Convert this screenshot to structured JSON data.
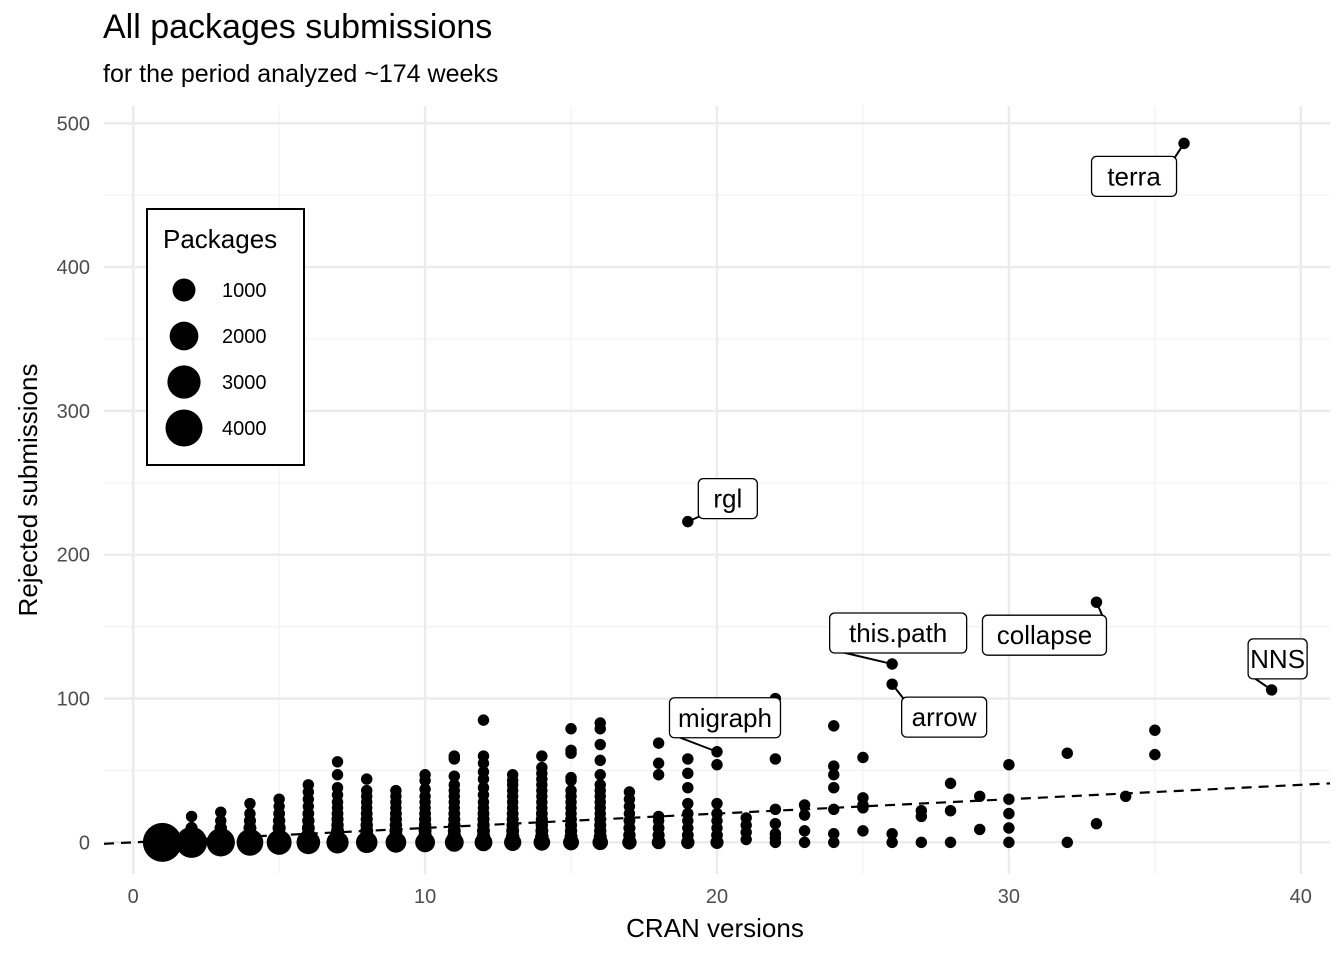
{
  "chart_data": {
    "type": "scatter",
    "title": "All packages submissions",
    "subtitle": "for the period analyzed ~174 weeks",
    "xlabel": "CRAN versions",
    "ylabel": "Rejected submissions",
    "xlim": [
      -1,
      41
    ],
    "ylim": [
      -22,
      512
    ],
    "xticks": [
      0,
      10,
      20,
      30,
      40
    ],
    "yticks": [
      0,
      100,
      200,
      300,
      400,
      500
    ],
    "grid": true,
    "trendline": {
      "style": "dashed",
      "x": [
        -1,
        41
      ],
      "y": [
        -1,
        41
      ]
    },
    "legend": {
      "title": "Packages",
      "placement": "top-left",
      "entries": [
        {
          "label": "1000",
          "value": 1000
        },
        {
          "label": "2000",
          "value": 2000
        },
        {
          "label": "3000",
          "value": 3000
        },
        {
          "label": "4000",
          "value": 4000
        }
      ]
    },
    "points": [
      {
        "x": 1,
        "y": 0,
        "size": 4600
      },
      {
        "x": 2,
        "y": 0,
        "size": 2500
      },
      {
        "x": 2,
        "y": 5,
        "size": 300
      },
      {
        "x": 2,
        "y": 10,
        "size": 50
      },
      {
        "x": 2,
        "y": 18,
        "size": 30
      },
      {
        "x": 3,
        "y": 0,
        "size": 1900
      },
      {
        "x": 3,
        "y": 5,
        "size": 200
      },
      {
        "x": 3,
        "y": 10,
        "size": 60
      },
      {
        "x": 3,
        "y": 15,
        "size": 30
      },
      {
        "x": 3,
        "y": 21,
        "size": 30
      },
      {
        "x": 4,
        "y": 0,
        "size": 1600
      },
      {
        "x": 4,
        "y": 5,
        "size": 150
      },
      {
        "x": 4,
        "y": 10,
        "size": 80
      },
      {
        "x": 4,
        "y": 15,
        "size": 50
      },
      {
        "x": 4,
        "y": 20,
        "size": 30
      },
      {
        "x": 4,
        "y": 27,
        "size": 30
      },
      {
        "x": 5,
        "y": 0,
        "size": 1300
      },
      {
        "x": 5,
        "y": 5,
        "size": 150
      },
      {
        "x": 5,
        "y": 10,
        "size": 90
      },
      {
        "x": 5,
        "y": 15,
        "size": 60
      },
      {
        "x": 5,
        "y": 20,
        "size": 40
      },
      {
        "x": 5,
        "y": 25,
        "size": 30
      },
      {
        "x": 5,
        "y": 30,
        "size": 30
      },
      {
        "x": 6,
        "y": 0,
        "size": 1100
      },
      {
        "x": 6,
        "y": 5,
        "size": 150
      },
      {
        "x": 6,
        "y": 10,
        "size": 80
      },
      {
        "x": 6,
        "y": 15,
        "size": 60
      },
      {
        "x": 6,
        "y": 20,
        "size": 40
      },
      {
        "x": 6,
        "y": 25,
        "size": 30
      },
      {
        "x": 6,
        "y": 30,
        "size": 30
      },
      {
        "x": 6,
        "y": 35,
        "size": 30
      },
      {
        "x": 6,
        "y": 40,
        "size": 30
      },
      {
        "x": 7,
        "y": 0,
        "size": 900
      },
      {
        "x": 7,
        "y": 4,
        "size": 150
      },
      {
        "x": 7,
        "y": 8,
        "size": 80
      },
      {
        "x": 7,
        "y": 12,
        "size": 60
      },
      {
        "x": 7,
        "y": 16,
        "size": 50
      },
      {
        "x": 7,
        "y": 20,
        "size": 40
      },
      {
        "x": 7,
        "y": 24,
        "size": 30
      },
      {
        "x": 7,
        "y": 28,
        "size": 30
      },
      {
        "x": 7,
        "y": 33,
        "size": 30
      },
      {
        "x": 7,
        "y": 38,
        "size": 30
      },
      {
        "x": 7,
        "y": 47,
        "size": 30
      },
      {
        "x": 7,
        "y": 56,
        "size": 30
      },
      {
        "x": 8,
        "y": 0,
        "size": 800
      },
      {
        "x": 8,
        "y": 4,
        "size": 150
      },
      {
        "x": 8,
        "y": 8,
        "size": 80
      },
      {
        "x": 8,
        "y": 12,
        "size": 60
      },
      {
        "x": 8,
        "y": 16,
        "size": 50
      },
      {
        "x": 8,
        "y": 20,
        "size": 40
      },
      {
        "x": 8,
        "y": 24,
        "size": 30
      },
      {
        "x": 8,
        "y": 28,
        "size": 30
      },
      {
        "x": 8,
        "y": 32,
        "size": 30
      },
      {
        "x": 8,
        "y": 36,
        "size": 30
      },
      {
        "x": 8,
        "y": 44,
        "size": 30
      },
      {
        "x": 9,
        "y": 0,
        "size": 700
      },
      {
        "x": 9,
        "y": 4,
        "size": 120
      },
      {
        "x": 9,
        "y": 8,
        "size": 80
      },
      {
        "x": 9,
        "y": 12,
        "size": 60
      },
      {
        "x": 9,
        "y": 16,
        "size": 50
      },
      {
        "x": 9,
        "y": 20,
        "size": 40
      },
      {
        "x": 9,
        "y": 24,
        "size": 30
      },
      {
        "x": 9,
        "y": 28,
        "size": 30
      },
      {
        "x": 9,
        "y": 32,
        "size": 30
      },
      {
        "x": 9,
        "y": 36,
        "size": 30
      },
      {
        "x": 10,
        "y": 0,
        "size": 600
      },
      {
        "x": 10,
        "y": 4,
        "size": 120
      },
      {
        "x": 10,
        "y": 8,
        "size": 80
      },
      {
        "x": 10,
        "y": 12,
        "size": 60
      },
      {
        "x": 10,
        "y": 16,
        "size": 50
      },
      {
        "x": 10,
        "y": 20,
        "size": 40
      },
      {
        "x": 10,
        "y": 24,
        "size": 30
      },
      {
        "x": 10,
        "y": 28,
        "size": 30
      },
      {
        "x": 10,
        "y": 32,
        "size": 30
      },
      {
        "x": 10,
        "y": 37,
        "size": 30
      },
      {
        "x": 10,
        "y": 43,
        "size": 30
      },
      {
        "x": 10,
        "y": 47,
        "size": 30
      },
      {
        "x": 11,
        "y": 0,
        "size": 500
      },
      {
        "x": 11,
        "y": 4,
        "size": 120
      },
      {
        "x": 11,
        "y": 8,
        "size": 80
      },
      {
        "x": 11,
        "y": 12,
        "size": 60
      },
      {
        "x": 11,
        "y": 16,
        "size": 50
      },
      {
        "x": 11,
        "y": 20,
        "size": 40
      },
      {
        "x": 11,
        "y": 24,
        "size": 30
      },
      {
        "x": 11,
        "y": 28,
        "size": 30
      },
      {
        "x": 11,
        "y": 32,
        "size": 30
      },
      {
        "x": 11,
        "y": 36,
        "size": 30
      },
      {
        "x": 11,
        "y": 40,
        "size": 30
      },
      {
        "x": 11,
        "y": 46,
        "size": 30
      },
      {
        "x": 11,
        "y": 58,
        "size": 30
      },
      {
        "x": 11,
        "y": 60,
        "size": 30
      },
      {
        "x": 12,
        "y": 0,
        "size": 400
      },
      {
        "x": 12,
        "y": 4,
        "size": 100
      },
      {
        "x": 12,
        "y": 8,
        "size": 80
      },
      {
        "x": 12,
        "y": 12,
        "size": 60
      },
      {
        "x": 12,
        "y": 16,
        "size": 50
      },
      {
        "x": 12,
        "y": 20,
        "size": 40
      },
      {
        "x": 12,
        "y": 24,
        "size": 30
      },
      {
        "x": 12,
        "y": 28,
        "size": 30
      },
      {
        "x": 12,
        "y": 33,
        "size": 30
      },
      {
        "x": 12,
        "y": 38,
        "size": 30
      },
      {
        "x": 12,
        "y": 44,
        "size": 30
      },
      {
        "x": 12,
        "y": 49,
        "size": 30
      },
      {
        "x": 12,
        "y": 55,
        "size": 30
      },
      {
        "x": 12,
        "y": 60,
        "size": 30
      },
      {
        "x": 12,
        "y": 85,
        "size": 30
      },
      {
        "x": 13,
        "y": 0,
        "size": 350
      },
      {
        "x": 13,
        "y": 4,
        "size": 100
      },
      {
        "x": 13,
        "y": 8,
        "size": 80
      },
      {
        "x": 13,
        "y": 12,
        "size": 60
      },
      {
        "x": 13,
        "y": 16,
        "size": 50
      },
      {
        "x": 13,
        "y": 20,
        "size": 40
      },
      {
        "x": 13,
        "y": 24,
        "size": 30
      },
      {
        "x": 13,
        "y": 28,
        "size": 30
      },
      {
        "x": 13,
        "y": 32,
        "size": 30
      },
      {
        "x": 13,
        "y": 36,
        "size": 30
      },
      {
        "x": 13,
        "y": 40,
        "size": 30
      },
      {
        "x": 13,
        "y": 43,
        "size": 30
      },
      {
        "x": 13,
        "y": 47,
        "size": 30
      },
      {
        "x": 14,
        "y": 0,
        "size": 300
      },
      {
        "x": 14,
        "y": 4,
        "size": 100
      },
      {
        "x": 14,
        "y": 8,
        "size": 80
      },
      {
        "x": 14,
        "y": 12,
        "size": 60
      },
      {
        "x": 14,
        "y": 16,
        "size": 50
      },
      {
        "x": 14,
        "y": 20,
        "size": 40
      },
      {
        "x": 14,
        "y": 24,
        "size": 30
      },
      {
        "x": 14,
        "y": 28,
        "size": 30
      },
      {
        "x": 14,
        "y": 32,
        "size": 30
      },
      {
        "x": 14,
        "y": 36,
        "size": 30
      },
      {
        "x": 14,
        "y": 40,
        "size": 30
      },
      {
        "x": 14,
        "y": 44,
        "size": 30
      },
      {
        "x": 14,
        "y": 48,
        "size": 30
      },
      {
        "x": 14,
        "y": 52,
        "size": 30
      },
      {
        "x": 14,
        "y": 60,
        "size": 30
      },
      {
        "x": 15,
        "y": 0,
        "size": 250
      },
      {
        "x": 15,
        "y": 4,
        "size": 80
      },
      {
        "x": 15,
        "y": 8,
        "size": 60
      },
      {
        "x": 15,
        "y": 12,
        "size": 50
      },
      {
        "x": 15,
        "y": 16,
        "size": 40
      },
      {
        "x": 15,
        "y": 20,
        "size": 30
      },
      {
        "x": 15,
        "y": 24,
        "size": 30
      },
      {
        "x": 15,
        "y": 28,
        "size": 30
      },
      {
        "x": 15,
        "y": 32,
        "size": 30
      },
      {
        "x": 15,
        "y": 36,
        "size": 30
      },
      {
        "x": 15,
        "y": 43,
        "size": 30
      },
      {
        "x": 15,
        "y": 45,
        "size": 30
      },
      {
        "x": 15,
        "y": 62,
        "size": 30
      },
      {
        "x": 15,
        "y": 64,
        "size": 30
      },
      {
        "x": 15,
        "y": 79,
        "size": 30
      },
      {
        "x": 16,
        "y": 0,
        "size": 220
      },
      {
        "x": 16,
        "y": 4,
        "size": 80
      },
      {
        "x": 16,
        "y": 8,
        "size": 60
      },
      {
        "x": 16,
        "y": 12,
        "size": 50
      },
      {
        "x": 16,
        "y": 16,
        "size": 40
      },
      {
        "x": 16,
        "y": 20,
        "size": 30
      },
      {
        "x": 16,
        "y": 24,
        "size": 30
      },
      {
        "x": 16,
        "y": 28,
        "size": 30
      },
      {
        "x": 16,
        "y": 32,
        "size": 30
      },
      {
        "x": 16,
        "y": 36,
        "size": 30
      },
      {
        "x": 16,
        "y": 40,
        "size": 30
      },
      {
        "x": 16,
        "y": 47,
        "size": 30
      },
      {
        "x": 16,
        "y": 57,
        "size": 30
      },
      {
        "x": 16,
        "y": 68,
        "size": 30
      },
      {
        "x": 16,
        "y": 79,
        "size": 30
      },
      {
        "x": 16,
        "y": 83,
        "size": 30
      },
      {
        "x": 17,
        "y": 0,
        "size": 150
      },
      {
        "x": 17,
        "y": 5,
        "size": 60
      },
      {
        "x": 17,
        "y": 10,
        "size": 50
      },
      {
        "x": 17,
        "y": 15,
        "size": 40
      },
      {
        "x": 17,
        "y": 20,
        "size": 30
      },
      {
        "x": 17,
        "y": 25,
        "size": 30
      },
      {
        "x": 17,
        "y": 30,
        "size": 30
      },
      {
        "x": 17,
        "y": 35,
        "size": 30
      },
      {
        "x": 18,
        "y": 0,
        "size": 120
      },
      {
        "x": 18,
        "y": 5,
        "size": 50
      },
      {
        "x": 18,
        "y": 10,
        "size": 40
      },
      {
        "x": 18,
        "y": 15,
        "size": 30
      },
      {
        "x": 18,
        "y": 18,
        "size": 30
      },
      {
        "x": 18,
        "y": 47,
        "size": 30
      },
      {
        "x": 18,
        "y": 55,
        "size": 30
      },
      {
        "x": 18,
        "y": 69,
        "size": 30
      },
      {
        "x": 19,
        "y": 0,
        "size": 100
      },
      {
        "x": 19,
        "y": 5,
        "size": 40
      },
      {
        "x": 19,
        "y": 10,
        "size": 30
      },
      {
        "x": 19,
        "y": 15,
        "size": 30
      },
      {
        "x": 19,
        "y": 20,
        "size": 30
      },
      {
        "x": 19,
        "y": 27,
        "size": 30
      },
      {
        "x": 19,
        "y": 38,
        "size": 30
      },
      {
        "x": 19,
        "y": 48,
        "size": 30
      },
      {
        "x": 19,
        "y": 58,
        "size": 30
      },
      {
        "x": 19,
        "y": 223,
        "size": 30
      },
      {
        "x": 20,
        "y": 0,
        "size": 90
      },
      {
        "x": 20,
        "y": 5,
        "size": 40
      },
      {
        "x": 20,
        "y": 10,
        "size": 30
      },
      {
        "x": 20,
        "y": 15,
        "size": 30
      },
      {
        "x": 20,
        "y": 20,
        "size": 30
      },
      {
        "x": 20,
        "y": 27,
        "size": 30
      },
      {
        "x": 20,
        "y": 54,
        "size": 30
      },
      {
        "x": 20,
        "y": 63,
        "size": 30
      },
      {
        "x": 21,
        "y": 2,
        "size": 30
      },
      {
        "x": 21,
        "y": 7,
        "size": 30
      },
      {
        "x": 21,
        "y": 12,
        "size": 30
      },
      {
        "x": 21,
        "y": 17,
        "size": 30
      },
      {
        "x": 22,
        "y": 0,
        "size": 30
      },
      {
        "x": 22,
        "y": 3,
        "size": 30
      },
      {
        "x": 22,
        "y": 6,
        "size": 30
      },
      {
        "x": 22,
        "y": 13,
        "size": 30
      },
      {
        "x": 22,
        "y": 23,
        "size": 30
      },
      {
        "x": 22,
        "y": 58,
        "size": 30
      },
      {
        "x": 22,
        "y": 100,
        "size": 30
      },
      {
        "x": 23,
        "y": 0,
        "size": 30
      },
      {
        "x": 23,
        "y": 8,
        "size": 30
      },
      {
        "x": 23,
        "y": 19,
        "size": 30
      },
      {
        "x": 23,
        "y": 26,
        "size": 30
      },
      {
        "x": 24,
        "y": 0,
        "size": 30
      },
      {
        "x": 24,
        "y": 6,
        "size": 30
      },
      {
        "x": 24,
        "y": 23,
        "size": 30
      },
      {
        "x": 24,
        "y": 38,
        "size": 30
      },
      {
        "x": 24,
        "y": 47,
        "size": 30
      },
      {
        "x": 24,
        "y": 53,
        "size": 30
      },
      {
        "x": 24,
        "y": 81,
        "size": 30
      },
      {
        "x": 25,
        "y": 8,
        "size": 30
      },
      {
        "x": 25,
        "y": 24,
        "size": 30
      },
      {
        "x": 25,
        "y": 26,
        "size": 30
      },
      {
        "x": 25,
        "y": 31,
        "size": 30
      },
      {
        "x": 25,
        "y": 59,
        "size": 30
      },
      {
        "x": 26,
        "y": 0,
        "size": 30
      },
      {
        "x": 26,
        "y": 6,
        "size": 30
      },
      {
        "x": 26,
        "y": 110,
        "size": 30
      },
      {
        "x": 26,
        "y": 124,
        "size": 30
      },
      {
        "x": 27,
        "y": 0,
        "size": 30
      },
      {
        "x": 27,
        "y": 18,
        "size": 30
      },
      {
        "x": 27,
        "y": 22,
        "size": 30
      },
      {
        "x": 28,
        "y": 0,
        "size": 30
      },
      {
        "x": 28,
        "y": 22,
        "size": 30
      },
      {
        "x": 28,
        "y": 41,
        "size": 30
      },
      {
        "x": 29,
        "y": 9,
        "size": 30
      },
      {
        "x": 29,
        "y": 32,
        "size": 30
      },
      {
        "x": 30,
        "y": 0,
        "size": 30
      },
      {
        "x": 30,
        "y": 10,
        "size": 30
      },
      {
        "x": 30,
        "y": 20,
        "size": 30
      },
      {
        "x": 30,
        "y": 30,
        "size": 30
      },
      {
        "x": 30,
        "y": 54,
        "size": 30
      },
      {
        "x": 32,
        "y": 0,
        "size": 30
      },
      {
        "x": 32,
        "y": 62,
        "size": 30
      },
      {
        "x": 33,
        "y": 13,
        "size": 30
      },
      {
        "x": 33,
        "y": 167,
        "size": 30
      },
      {
        "x": 34,
        "y": 32,
        "size": 30
      },
      {
        "x": 35,
        "y": 61,
        "size": 30
      },
      {
        "x": 35,
        "y": 78,
        "size": 30
      },
      {
        "x": 36,
        "y": 486,
        "size": 30
      },
      {
        "x": 39,
        "y": 106,
        "size": 30
      }
    ],
    "labels": [
      {
        "text": "terra",
        "x": 36,
        "y": 486,
        "dx": -50,
        "dy": 33
      },
      {
        "text": "rgl",
        "x": 19,
        "y": 223,
        "dx": 40,
        "dy": -23
      },
      {
        "text": "this.path",
        "x": 26,
        "y": 124,
        "dx": 6,
        "dy": -31
      },
      {
        "text": "collapse",
        "x": 33,
        "y": 167,
        "dx": -52,
        "dy": 33
      },
      {
        "text": "NNS",
        "x": 39,
        "y": 106,
        "dx": 6,
        "dy": -31
      },
      {
        "text": "arrow",
        "x": 26,
        "y": 110,
        "dx": 52,
        "dy": 33
      },
      {
        "text": "migraph",
        "x": 20,
        "y": 63,
        "dx": 8,
        "dy": -34
      }
    ]
  }
}
